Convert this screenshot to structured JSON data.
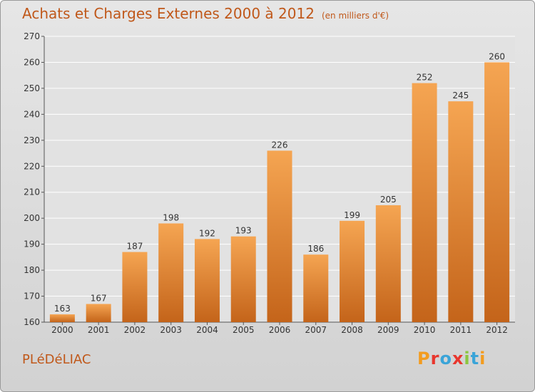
{
  "title": "Achats et Charges Externes 2000 à 2012",
  "unit": "(en milliers d'€)",
  "commune": "PLéDéLIAC",
  "logo": {
    "text": "Proxiti",
    "letter_colors": [
      "#f39c1f",
      "#e8362d",
      "#3aa4d8",
      "#e8362d",
      "#8cc63f",
      "#3aa4d8",
      "#f39c1f"
    ]
  },
  "chart_data": {
    "type": "bar",
    "categories": [
      "2000",
      "2001",
      "2002",
      "2003",
      "2004",
      "2005",
      "2006",
      "2007",
      "2008",
      "2009",
      "2010",
      "2011",
      "2012"
    ],
    "values": [
      163,
      167,
      187,
      198,
      192,
      193,
      226,
      186,
      199,
      205,
      252,
      245,
      260
    ],
    "ylim": [
      160,
      270
    ],
    "yticks": [
      160,
      170,
      180,
      190,
      200,
      210,
      220,
      230,
      240,
      250,
      260,
      270
    ],
    "grid": true,
    "colors": {
      "bar_light": "#f5a552",
      "bar_dark": "#c4641a",
      "grid": "#ffffff",
      "axis": "#555555",
      "text": "#333333"
    }
  }
}
